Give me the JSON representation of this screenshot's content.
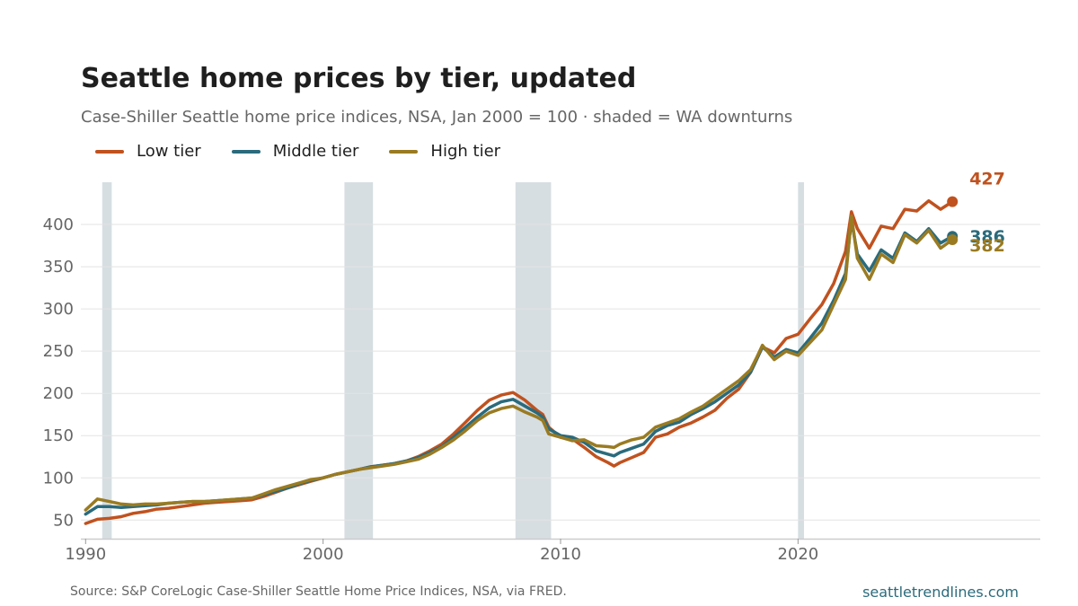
{
  "header": {
    "title": "Seattle home prices by tier, updated",
    "subtitle": "Case-Shiller Seattle home price indices, NSA, Jan 2000 = 100 · shaded = WA downturns"
  },
  "footer": {
    "source": "Source: S&P CoreLogic Case-Shiller Seattle Home Price Indices, NSA, via FRED.",
    "site": "seattletrendlines.com"
  },
  "colors": {
    "low": "#c0521f",
    "middle": "#2a6b7c",
    "high": "#9a7b22",
    "recession": "#d6dee2",
    "grid": "#e3e3e3"
  },
  "chart_data": {
    "type": "line",
    "title": "Seattle home prices by tier, updated",
    "subtitle": "Case-Shiller Seattle home price indices, NSA, Jan 2000 = 100 · shaded = WA downturns",
    "xlabel": "",
    "ylabel": "",
    "xlim": [
      1989.8,
      2030.2
    ],
    "ylim": [
      28,
      450
    ],
    "x_ticks": [
      1990,
      2000,
      2010,
      2020
    ],
    "y_ticks": [
      50,
      100,
      150,
      200,
      250,
      300,
      350,
      400
    ],
    "grid": "horizontal",
    "legend_position": "top-left",
    "shaded_periods": [
      [
        1990.7,
        1991.1
      ],
      [
        2000.9,
        2002.1
      ],
      [
        2008.1,
        2009.6
      ],
      [
        2020.0,
        2020.25
      ]
    ],
    "series": [
      {
        "name": "Low tier",
        "color": "#c0521f",
        "end_label": "427",
        "points": [
          [
            1990.0,
            46
          ],
          [
            1990.5,
            51
          ],
          [
            1991.0,
            52
          ],
          [
            1991.5,
            54
          ],
          [
            1992.0,
            58
          ],
          [
            1992.5,
            60
          ],
          [
            1993.0,
            63
          ],
          [
            1993.5,
            64
          ],
          [
            1994.0,
            66
          ],
          [
            1994.5,
            68
          ],
          [
            1995.0,
            70
          ],
          [
            1995.5,
            71
          ],
          [
            1996.0,
            72
          ],
          [
            1996.5,
            73
          ],
          [
            1997.0,
            74
          ],
          [
            1997.5,
            78
          ],
          [
            1998.0,
            83
          ],
          [
            1998.5,
            88
          ],
          [
            1999.0,
            92
          ],
          [
            1999.5,
            96
          ],
          [
            2000.0,
            100
          ],
          [
            2000.5,
            104
          ],
          [
            2001.0,
            107
          ],
          [
            2001.5,
            110
          ],
          [
            2002.0,
            113
          ],
          [
            2002.5,
            115
          ],
          [
            2003.0,
            117
          ],
          [
            2003.5,
            120
          ],
          [
            2004.0,
            125
          ],
          [
            2004.5,
            132
          ],
          [
            2005.0,
            140
          ],
          [
            2005.5,
            152
          ],
          [
            2006.0,
            166
          ],
          [
            2006.5,
            180
          ],
          [
            2007.0,
            192
          ],
          [
            2007.5,
            198
          ],
          [
            2008.0,
            201
          ],
          [
            2008.5,
            192
          ],
          [
            2009.0,
            180
          ],
          [
            2009.25,
            175
          ],
          [
            2009.5,
            160
          ],
          [
            2010.0,
            148
          ],
          [
            2010.5,
            146
          ],
          [
            2011.0,
            136
          ],
          [
            2011.5,
            125
          ],
          [
            2012.0,
            118
          ],
          [
            2012.25,
            114
          ],
          [
            2012.5,
            118
          ],
          [
            2013.0,
            124
          ],
          [
            2013.5,
            130
          ],
          [
            2014.0,
            148
          ],
          [
            2014.5,
            152
          ],
          [
            2015.0,
            160
          ],
          [
            2015.5,
            165
          ],
          [
            2016.0,
            172
          ],
          [
            2016.5,
            180
          ],
          [
            2017.0,
            194
          ],
          [
            2017.5,
            205
          ],
          [
            2018.0,
            225
          ],
          [
            2018.25,
            240
          ],
          [
            2018.5,
            255
          ],
          [
            2019.0,
            248
          ],
          [
            2019.5,
            265
          ],
          [
            2020.0,
            270
          ],
          [
            2020.5,
            288
          ],
          [
            2021.0,
            305
          ],
          [
            2021.5,
            330
          ],
          [
            2022.0,
            368
          ],
          [
            2022.25,
            415
          ],
          [
            2022.5,
            395
          ],
          [
            2023.0,
            372
          ],
          [
            2023.5,
            398
          ],
          [
            2024.0,
            395
          ],
          [
            2024.5,
            418
          ],
          [
            2025.0,
            416
          ],
          [
            2025.5,
            428
          ],
          [
            2026.0,
            418
          ],
          [
            2026.5,
            427
          ]
        ]
      },
      {
        "name": "Middle tier",
        "color": "#2a6b7c",
        "end_label": "386",
        "points": [
          [
            1990.0,
            57
          ],
          [
            1990.5,
            66
          ],
          [
            1991.0,
            66
          ],
          [
            1991.5,
            65
          ],
          [
            1992.0,
            66
          ],
          [
            1992.5,
            67
          ],
          [
            1993.0,
            68
          ],
          [
            1993.5,
            70
          ],
          [
            1994.0,
            71
          ],
          [
            1994.5,
            72
          ],
          [
            1995.0,
            72
          ],
          [
            1995.5,
            73
          ],
          [
            1996.0,
            74
          ],
          [
            1996.5,
            75
          ],
          [
            1997.0,
            76
          ],
          [
            1997.5,
            80
          ],
          [
            1998.0,
            84
          ],
          [
            1998.5,
            88
          ],
          [
            1999.0,
            93
          ],
          [
            1999.5,
            97
          ],
          [
            2000.0,
            100
          ],
          [
            2000.5,
            104
          ],
          [
            2001.0,
            107
          ],
          [
            2001.5,
            110
          ],
          [
            2002.0,
            113
          ],
          [
            2002.5,
            115
          ],
          [
            2003.0,
            117
          ],
          [
            2003.5,
            120
          ],
          [
            2004.0,
            124
          ],
          [
            2004.5,
            130
          ],
          [
            2005.0,
            137
          ],
          [
            2005.5,
            148
          ],
          [
            2006.0,
            160
          ],
          [
            2006.5,
            172
          ],
          [
            2007.0,
            183
          ],
          [
            2007.5,
            190
          ],
          [
            2008.0,
            193
          ],
          [
            2008.5,
            185
          ],
          [
            2009.0,
            177
          ],
          [
            2009.25,
            172
          ],
          [
            2009.5,
            158
          ],
          [
            2010.0,
            150
          ],
          [
            2010.5,
            148
          ],
          [
            2011.0,
            142
          ],
          [
            2011.5,
            132
          ],
          [
            2012.0,
            128
          ],
          [
            2012.25,
            126
          ],
          [
            2012.5,
            130
          ],
          [
            2013.0,
            135
          ],
          [
            2013.5,
            140
          ],
          [
            2014.0,
            155
          ],
          [
            2014.5,
            162
          ],
          [
            2015.0,
            166
          ],
          [
            2015.5,
            175
          ],
          [
            2016.0,
            182
          ],
          [
            2016.5,
            190
          ],
          [
            2017.0,
            200
          ],
          [
            2017.5,
            210
          ],
          [
            2018.0,
            225
          ],
          [
            2018.25,
            240
          ],
          [
            2018.5,
            255
          ],
          [
            2019.0,
            243
          ],
          [
            2019.5,
            252
          ],
          [
            2020.0,
            248
          ],
          [
            2020.5,
            265
          ],
          [
            2021.0,
            283
          ],
          [
            2021.5,
            310
          ],
          [
            2022.0,
            342
          ],
          [
            2022.25,
            405
          ],
          [
            2022.5,
            365
          ],
          [
            2023.0,
            345
          ],
          [
            2023.5,
            370
          ],
          [
            2024.0,
            360
          ],
          [
            2024.5,
            390
          ],
          [
            2025.0,
            380
          ],
          [
            2025.5,
            395
          ],
          [
            2026.0,
            378
          ],
          [
            2026.5,
            386
          ]
        ]
      },
      {
        "name": "High tier",
        "color": "#9a7b22",
        "end_label": "382",
        "points": [
          [
            1990.0,
            62
          ],
          [
            1990.5,
            75
          ],
          [
            1991.0,
            72
          ],
          [
            1991.5,
            69
          ],
          [
            1992.0,
            68
          ],
          [
            1992.5,
            69
          ],
          [
            1993.0,
            69
          ],
          [
            1993.5,
            70
          ],
          [
            1994.0,
            71
          ],
          [
            1994.5,
            72
          ],
          [
            1995.0,
            72
          ],
          [
            1995.5,
            73
          ],
          [
            1996.0,
            74
          ],
          [
            1996.5,
            75
          ],
          [
            1997.0,
            76
          ],
          [
            1997.5,
            81
          ],
          [
            1998.0,
            86
          ],
          [
            1998.5,
            90
          ],
          [
            1999.0,
            94
          ],
          [
            1999.5,
            98
          ],
          [
            2000.0,
            100
          ],
          [
            2000.5,
            104
          ],
          [
            2001.0,
            107
          ],
          [
            2001.5,
            110
          ],
          [
            2002.0,
            112
          ],
          [
            2002.5,
            114
          ],
          [
            2003.0,
            116
          ],
          [
            2003.5,
            119
          ],
          [
            2004.0,
            122
          ],
          [
            2004.5,
            128
          ],
          [
            2005.0,
            136
          ],
          [
            2005.5,
            145
          ],
          [
            2006.0,
            156
          ],
          [
            2006.5,
            168
          ],
          [
            2007.0,
            177
          ],
          [
            2007.5,
            182
          ],
          [
            2008.0,
            185
          ],
          [
            2008.5,
            178
          ],
          [
            2009.0,
            172
          ],
          [
            2009.25,
            168
          ],
          [
            2009.5,
            152
          ],
          [
            2010.0,
            148
          ],
          [
            2010.5,
            144
          ],
          [
            2011.0,
            145
          ],
          [
            2011.5,
            138
          ],
          [
            2012.0,
            137
          ],
          [
            2012.25,
            136
          ],
          [
            2012.5,
            140
          ],
          [
            2013.0,
            145
          ],
          [
            2013.5,
            148
          ],
          [
            2014.0,
            160
          ],
          [
            2014.5,
            165
          ],
          [
            2015.0,
            170
          ],
          [
            2015.5,
            178
          ],
          [
            2016.0,
            185
          ],
          [
            2016.5,
            195
          ],
          [
            2017.0,
            205
          ],
          [
            2017.5,
            215
          ],
          [
            2018.0,
            228
          ],
          [
            2018.25,
            242
          ],
          [
            2018.5,
            257
          ],
          [
            2019.0,
            240
          ],
          [
            2019.5,
            250
          ],
          [
            2020.0,
            245
          ],
          [
            2020.5,
            260
          ],
          [
            2021.0,
            275
          ],
          [
            2021.5,
            305
          ],
          [
            2022.0,
            335
          ],
          [
            2022.25,
            410
          ],
          [
            2022.5,
            360
          ],
          [
            2023.0,
            335
          ],
          [
            2023.5,
            365
          ],
          [
            2024.0,
            355
          ],
          [
            2024.5,
            388
          ],
          [
            2025.0,
            378
          ],
          [
            2025.5,
            393
          ],
          [
            2026.0,
            372
          ],
          [
            2026.5,
            382
          ]
        ]
      }
    ]
  }
}
